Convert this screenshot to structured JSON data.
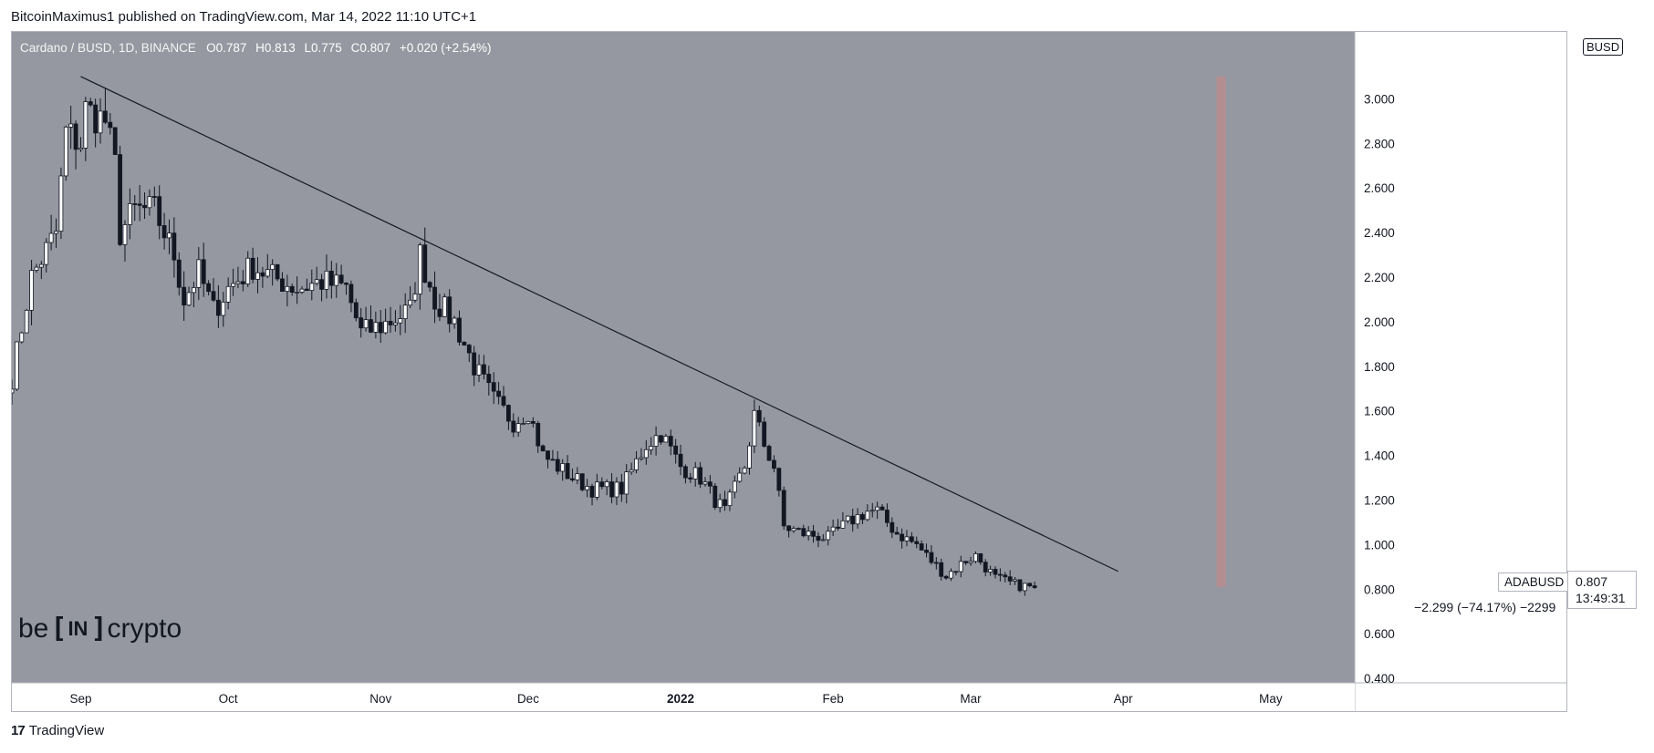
{
  "header": {
    "published": "BitcoinMaximus1 published on TradingView.com, Mar 14, 2022 11:10 UTC+1"
  },
  "legend": {
    "symbol": "Cardano / BUSD, 1D, BINANCE",
    "o_key": "O",
    "o_val": "0.787",
    "h_key": "H",
    "h_val": "0.813",
    "l_key": "L",
    "l_val": "0.775",
    "c_key": "C",
    "c_val": "0.807",
    "change": "+0.020 (+2.54%)"
  },
  "currency_badge": "BUSD",
  "symbol_label": "ADABUSD",
  "last_price": "0.807",
  "countdown": "13:49:31",
  "measure_text": "−2.299 (−74.17%) −2299",
  "logo": {
    "left": "be",
    "mid": "IN",
    "right": "crypto"
  },
  "footer": {
    "brand": "TradingView",
    "mark": "17"
  },
  "colors": {
    "chart_bg": "#9598a1",
    "bull_body": "#ffffff",
    "bear_body": "#131722",
    "wick": "#131722",
    "trendline": "#131722",
    "measure_bar": "#b88c8e"
  },
  "chart_data": {
    "type": "candlestick",
    "title": "",
    "x_ticks": [
      "Sep",
      "Oct",
      "Nov",
      "Dec",
      "2022",
      "Feb",
      "Mar",
      "Apr",
      "May"
    ],
    "y_ticks": [
      "3.000",
      "2.800",
      "2.600",
      "2.400",
      "2.200",
      "2.000",
      "1.800",
      "1.600",
      "1.400",
      "1.200",
      "1.000",
      "0.800",
      "0.600",
      "0.400"
    ],
    "ylim": [
      0.38,
      3.3
    ],
    "start_date": "2021-08-18",
    "end_date": "2022-03-14",
    "trendline": {
      "from": [
        "2021-09-01",
        3.1
      ],
      "to": [
        "2022-03-31",
        0.88
      ]
    },
    "measure_bar": {
      "from": [
        "2022-04-20",
        3.1
      ],
      "to": [
        "2022-04-21",
        0.81
      ]
    },
    "anchors": [
      [
        "2021-08-18",
        1.75
      ],
      [
        "2021-08-22",
        2.2
      ],
      [
        "2021-08-27",
        2.4
      ],
      [
        "2021-08-29",
        2.85
      ],
      [
        "2021-09-01",
        2.8
      ],
      [
        "2021-09-02",
        2.95
      ],
      [
        "2021-09-06",
        2.9
      ],
      [
        "2021-09-08",
        2.7
      ],
      [
        "2021-09-09",
        2.4
      ],
      [
        "2021-09-12",
        2.5
      ],
      [
        "2021-09-16",
        2.5
      ],
      [
        "2021-09-20",
        2.3
      ],
      [
        "2021-09-22",
        2.1
      ],
      [
        "2021-09-25",
        2.22
      ],
      [
        "2021-09-28",
        2.05
      ],
      [
        "2021-10-01",
        2.15
      ],
      [
        "2021-10-06",
        2.25
      ],
      [
        "2021-10-10",
        2.2
      ],
      [
        "2021-10-15",
        2.15
      ],
      [
        "2021-10-20",
        2.18
      ],
      [
        "2021-10-25",
        2.15
      ],
      [
        "2021-10-28",
        1.95
      ],
      [
        "2021-11-01",
        1.98
      ],
      [
        "2021-11-07",
        2.05
      ],
      [
        "2021-11-09",
        2.3
      ],
      [
        "2021-11-12",
        2.1
      ],
      [
        "2021-11-16",
        2.0
      ],
      [
        "2021-11-20",
        1.8
      ],
      [
        "2021-11-24",
        1.65
      ],
      [
        "2021-11-28",
        1.55
      ],
      [
        "2021-12-01",
        1.6
      ],
      [
        "2021-12-04",
        1.4
      ],
      [
        "2021-12-10",
        1.3
      ],
      [
        "2021-12-14",
        1.25
      ],
      [
        "2021-12-20",
        1.25
      ],
      [
        "2021-12-25",
        1.45
      ],
      [
        "2021-12-28",
        1.5
      ],
      [
        "2022-01-01",
        1.35
      ],
      [
        "2022-01-05",
        1.3
      ],
      [
        "2022-01-08",
        1.2
      ],
      [
        "2022-01-10",
        1.15
      ],
      [
        "2022-01-14",
        1.35
      ],
      [
        "2022-01-16",
        1.58
      ],
      [
        "2022-01-18",
        1.45
      ],
      [
        "2022-01-20",
        1.35
      ],
      [
        "2022-01-22",
        1.08
      ],
      [
        "2022-01-26",
        1.05
      ],
      [
        "2022-01-31",
        1.03
      ],
      [
        "2022-02-04",
        1.1
      ],
      [
        "2022-02-08",
        1.15
      ],
      [
        "2022-02-10",
        1.15
      ],
      [
        "2022-02-14",
        1.05
      ],
      [
        "2022-02-18",
        1.0
      ],
      [
        "2022-02-20",
        0.95
      ],
      [
        "2022-02-24",
        0.86
      ],
      [
        "2022-02-28",
        0.93
      ],
      [
        "2022-03-02",
        0.95
      ],
      [
        "2022-03-06",
        0.85
      ],
      [
        "2022-03-10",
        0.82
      ],
      [
        "2022-03-14",
        0.807
      ]
    ]
  }
}
